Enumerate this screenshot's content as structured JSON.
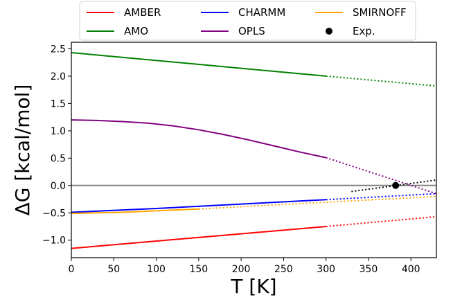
{
  "chart_data": {
    "type": "line",
    "title": "",
    "xlabel": "T [K]",
    "ylabel": "ΔG [kcal/mol]",
    "xlim": [
      0,
      430
    ],
    "ylim": [
      -1.32,
      2.62
    ],
    "xticks": [
      0,
      50,
      100,
      150,
      200,
      250,
      300,
      350,
      400
    ],
    "yticks": [
      -1.0,
      -0.5,
      0.0,
      0.5,
      1.0,
      1.5,
      2.0,
      2.5
    ],
    "ytick_labels": [
      "−1.0",
      "−0.5",
      "0.0",
      "0.5",
      "1.0",
      "1.5",
      "2.0",
      "2.5"
    ],
    "legend_location": "top-center",
    "reference_line": {
      "y": 0.0,
      "color": "#808080"
    },
    "series": [
      {
        "name": "AMBER",
        "color": "#ff0000",
        "solid": [
          [
            0,
            -1.15
          ],
          [
            300,
            -0.75
          ]
        ],
        "dotted": [
          [
            300,
            -0.75
          ],
          [
            430,
            -0.57
          ]
        ]
      },
      {
        "name": "AMO",
        "color": "#008000",
        "solid": [
          [
            0,
            2.43
          ],
          [
            300,
            2.0
          ]
        ],
        "dotted": [
          [
            300,
            2.0
          ],
          [
            430,
            1.82
          ]
        ]
      },
      {
        "name": "CHARMM",
        "color": "#0000ff",
        "solid": [
          [
            0,
            -0.49
          ],
          [
            100,
            -0.42
          ],
          [
            200,
            -0.34
          ],
          [
            300,
            -0.26
          ]
        ],
        "dotted": [
          [
            300,
            -0.26
          ],
          [
            430,
            -0.15
          ]
        ]
      },
      {
        "name": "OPLS",
        "color": "#800080",
        "solid": [
          [
            0,
            1.2
          ],
          [
            30,
            1.19
          ],
          [
            60,
            1.17
          ],
          [
            90,
            1.14
          ],
          [
            120,
            1.09
          ],
          [
            150,
            1.02
          ],
          [
            180,
            0.93
          ],
          [
            210,
            0.83
          ],
          [
            240,
            0.72
          ],
          [
            270,
            0.61
          ],
          [
            300,
            0.51
          ]
        ],
        "dotted": [
          [
            300,
            0.51
          ],
          [
            430,
            -0.15
          ]
        ]
      },
      {
        "name": "SMIRNOFF",
        "color": "#ffa500",
        "solid": [
          [
            0,
            -0.51
          ],
          [
            30,
            -0.5
          ],
          [
            60,
            -0.49
          ],
          [
            90,
            -0.47
          ],
          [
            120,
            -0.45
          ],
          [
            150,
            -0.43
          ]
        ],
        "dotted": [
          [
            150,
            -0.43
          ],
          [
            430,
            -0.2
          ]
        ]
      },
      {
        "name": "Exp.",
        "color": "#000000",
        "marker": "circle",
        "point": [
          382,
          0.0
        ],
        "dotted": [
          [
            330,
            -0.11
          ],
          [
            430,
            0.1
          ]
        ]
      }
    ]
  }
}
